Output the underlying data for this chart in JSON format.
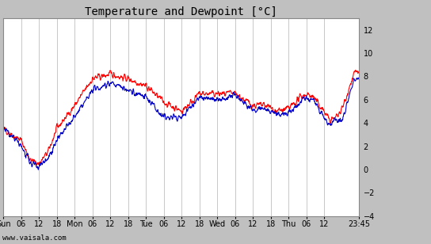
{
  "title": "Temperature and Dewpoint [°C]",
  "background_color": "#c0c0c0",
  "plot_bg_color": "#ffffff",
  "grid_color": "#c8c8c8",
  "temp_color": "#ff0000",
  "dew_color": "#0000cc",
  "ylim": [
    -4,
    13
  ],
  "yticks": [
    -4,
    -2,
    0,
    2,
    4,
    6,
    8,
    10,
    12
  ],
  "xtick_labels": [
    "Sun",
    "06",
    "12",
    "18",
    "Mon",
    "06",
    "12",
    "18",
    "Tue",
    "06",
    "12",
    "18",
    "Wed",
    "06",
    "12",
    "18",
    "Thu",
    "06",
    "12",
    "23:45"
  ],
  "xtick_positions": [
    0,
    6,
    12,
    18,
    24,
    30,
    36,
    42,
    48,
    54,
    60,
    66,
    72,
    78,
    84,
    90,
    96,
    102,
    108,
    119.75
  ],
  "watermark": "www.vaisala.com",
  "line_width": 0.8,
  "title_fontsize": 10,
  "tick_fontsize": 7,
  "xlim_max": 119.75
}
